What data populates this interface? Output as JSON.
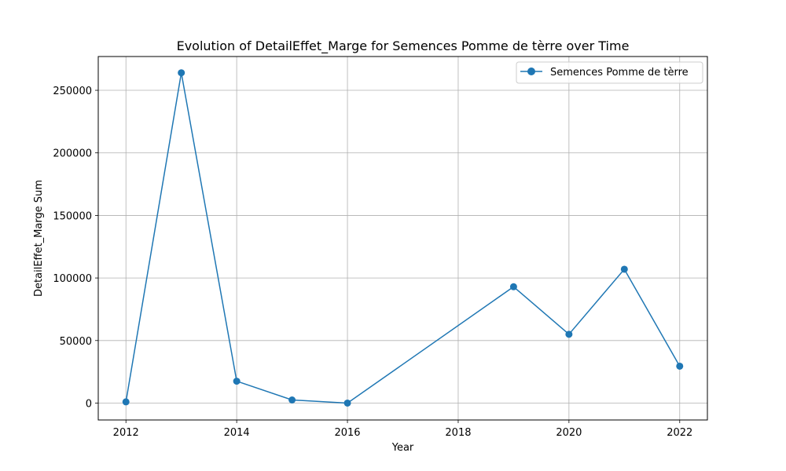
{
  "chart_data": {
    "type": "line",
    "title": "Evolution of DetailEffet_Marge for Semences Pomme de tèrre over Time",
    "xlabel": "Year",
    "ylabel": "DetailEffet_Marge Sum",
    "xlim": [
      2011.5,
      2022.5
    ],
    "ylim": [
      -13500,
      277000
    ],
    "x_ticks": [
      2012,
      2014,
      2016,
      2018,
      2020,
      2022
    ],
    "y_ticks": [
      0,
      50000,
      100000,
      150000,
      200000,
      250000
    ],
    "grid": true,
    "legend_position": "top-right",
    "series": [
      {
        "name": "Semences Pomme de tèrre",
        "color": "#1f77b4",
        "marker": "circle",
        "x": [
          2012,
          2013,
          2014,
          2015,
          2016,
          2019,
          2020,
          2021,
          2022
        ],
        "y": [
          1000,
          264000,
          17500,
          2500,
          0,
          93000,
          55000,
          107000,
          29500
        ]
      }
    ]
  }
}
